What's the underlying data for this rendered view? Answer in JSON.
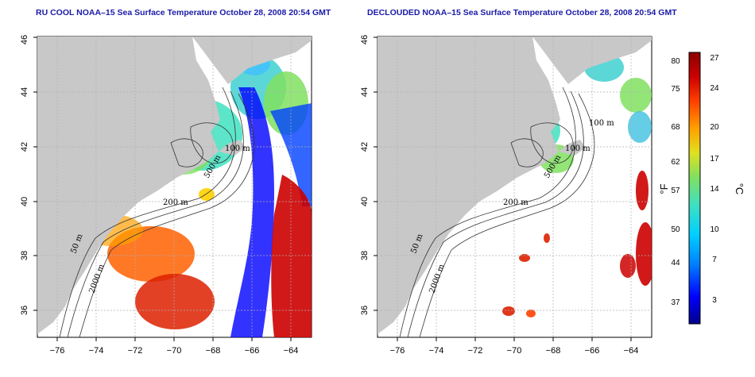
{
  "panels": [
    {
      "title": "RU COOL NOAA–15 Sea Surface Temperature October 28, 2008 20:54 GMT",
      "contour_labels": [
        "200 m",
        "50 m",
        "2000 m",
        "100 m",
        "500 m"
      ]
    },
    {
      "title": "DECLOUDED NOAA–15 Sea Surface Temperature October 28, 2008 20:54 GMT",
      "contour_labels": [
        "200 m",
        "50 m",
        "2000 m",
        "100 m",
        "100 m",
        "500 m"
      ]
    }
  ],
  "map_axes": {
    "lon_ticks": [
      "−76",
      "−74",
      "−72",
      "−70",
      "−68",
      "−66",
      "−64"
    ],
    "lat_ticks": [
      "36",
      "38",
      "40",
      "42",
      "44",
      "46"
    ],
    "lon_range": [
      -77,
      -63
    ],
    "lat_range": [
      35,
      46
    ],
    "grid": true
  },
  "colorbar": {
    "fahrenheit_labels": [
      "80",
      "75",
      "68",
      "62",
      "57",
      "50",
      "44",
      "37"
    ],
    "celsius_labels": [
      "27",
      "24",
      "20",
      "17",
      "14",
      "10",
      "7",
      "3"
    ],
    "unit_f": "°F",
    "unit_c": "°C",
    "colors": [
      "#00008b",
      "#0000ff",
      "#0080ff",
      "#00d0ff",
      "#40e0c0",
      "#80e060",
      "#e0e020",
      "#ffa000",
      "#ff4000",
      "#cc0000",
      "#8b0000"
    ]
  },
  "land_color": "#c8c8c8"
}
